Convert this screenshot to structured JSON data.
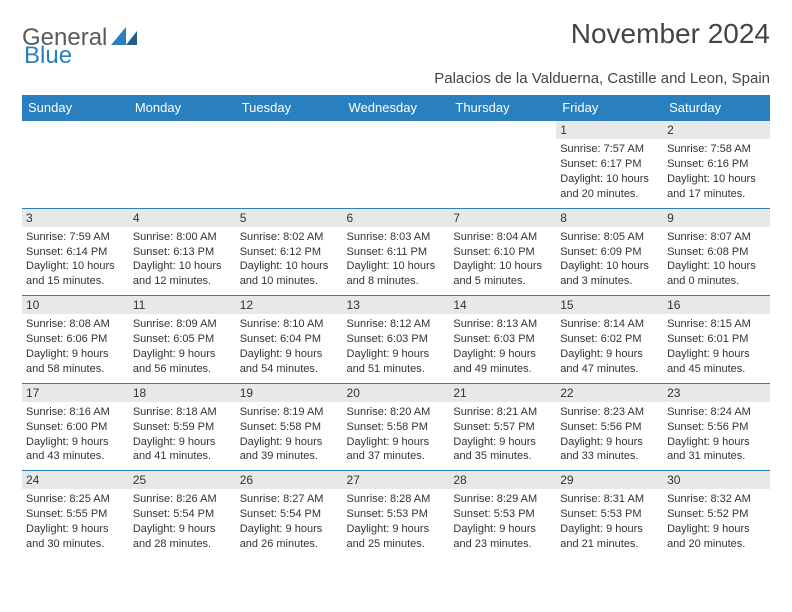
{
  "logo": {
    "part1": "General",
    "part2": "Blue"
  },
  "title": "November 2024",
  "location": "Palacios de la Valduerna, Castille and Leon, Spain",
  "colors": {
    "header_bg": "#2a7fbf",
    "header_text": "#ffffff",
    "daynum_bg": "#e8e8e8",
    "border": "#2a7fbf",
    "text": "#333333",
    "logo_gray": "#5a5a5a",
    "logo_blue": "#2a7fbf"
  },
  "weekdays": [
    "Sunday",
    "Monday",
    "Tuesday",
    "Wednesday",
    "Thursday",
    "Friday",
    "Saturday"
  ],
  "weeks": [
    [
      {
        "day": "",
        "sunrise": "",
        "sunset": "",
        "daylight": ""
      },
      {
        "day": "",
        "sunrise": "",
        "sunset": "",
        "daylight": ""
      },
      {
        "day": "",
        "sunrise": "",
        "sunset": "",
        "daylight": ""
      },
      {
        "day": "",
        "sunrise": "",
        "sunset": "",
        "daylight": ""
      },
      {
        "day": "",
        "sunrise": "",
        "sunset": "",
        "daylight": ""
      },
      {
        "day": "1",
        "sunrise": "Sunrise: 7:57 AM",
        "sunset": "Sunset: 6:17 PM",
        "daylight": "Daylight: 10 hours and 20 minutes."
      },
      {
        "day": "2",
        "sunrise": "Sunrise: 7:58 AM",
        "sunset": "Sunset: 6:16 PM",
        "daylight": "Daylight: 10 hours and 17 minutes."
      }
    ],
    [
      {
        "day": "3",
        "sunrise": "Sunrise: 7:59 AM",
        "sunset": "Sunset: 6:14 PM",
        "daylight": "Daylight: 10 hours and 15 minutes."
      },
      {
        "day": "4",
        "sunrise": "Sunrise: 8:00 AM",
        "sunset": "Sunset: 6:13 PM",
        "daylight": "Daylight: 10 hours and 12 minutes."
      },
      {
        "day": "5",
        "sunrise": "Sunrise: 8:02 AM",
        "sunset": "Sunset: 6:12 PM",
        "daylight": "Daylight: 10 hours and 10 minutes."
      },
      {
        "day": "6",
        "sunrise": "Sunrise: 8:03 AM",
        "sunset": "Sunset: 6:11 PM",
        "daylight": "Daylight: 10 hours and 8 minutes."
      },
      {
        "day": "7",
        "sunrise": "Sunrise: 8:04 AM",
        "sunset": "Sunset: 6:10 PM",
        "daylight": "Daylight: 10 hours and 5 minutes."
      },
      {
        "day": "8",
        "sunrise": "Sunrise: 8:05 AM",
        "sunset": "Sunset: 6:09 PM",
        "daylight": "Daylight: 10 hours and 3 minutes."
      },
      {
        "day": "9",
        "sunrise": "Sunrise: 8:07 AM",
        "sunset": "Sunset: 6:08 PM",
        "daylight": "Daylight: 10 hours and 0 minutes."
      }
    ],
    [
      {
        "day": "10",
        "sunrise": "Sunrise: 8:08 AM",
        "sunset": "Sunset: 6:06 PM",
        "daylight": "Daylight: 9 hours and 58 minutes."
      },
      {
        "day": "11",
        "sunrise": "Sunrise: 8:09 AM",
        "sunset": "Sunset: 6:05 PM",
        "daylight": "Daylight: 9 hours and 56 minutes."
      },
      {
        "day": "12",
        "sunrise": "Sunrise: 8:10 AM",
        "sunset": "Sunset: 6:04 PM",
        "daylight": "Daylight: 9 hours and 54 minutes."
      },
      {
        "day": "13",
        "sunrise": "Sunrise: 8:12 AM",
        "sunset": "Sunset: 6:03 PM",
        "daylight": "Daylight: 9 hours and 51 minutes."
      },
      {
        "day": "14",
        "sunrise": "Sunrise: 8:13 AM",
        "sunset": "Sunset: 6:03 PM",
        "daylight": "Daylight: 9 hours and 49 minutes."
      },
      {
        "day": "15",
        "sunrise": "Sunrise: 8:14 AM",
        "sunset": "Sunset: 6:02 PM",
        "daylight": "Daylight: 9 hours and 47 minutes."
      },
      {
        "day": "16",
        "sunrise": "Sunrise: 8:15 AM",
        "sunset": "Sunset: 6:01 PM",
        "daylight": "Daylight: 9 hours and 45 minutes."
      }
    ],
    [
      {
        "day": "17",
        "sunrise": "Sunrise: 8:16 AM",
        "sunset": "Sunset: 6:00 PM",
        "daylight": "Daylight: 9 hours and 43 minutes."
      },
      {
        "day": "18",
        "sunrise": "Sunrise: 8:18 AM",
        "sunset": "Sunset: 5:59 PM",
        "daylight": "Daylight: 9 hours and 41 minutes."
      },
      {
        "day": "19",
        "sunrise": "Sunrise: 8:19 AM",
        "sunset": "Sunset: 5:58 PM",
        "daylight": "Daylight: 9 hours and 39 minutes."
      },
      {
        "day": "20",
        "sunrise": "Sunrise: 8:20 AM",
        "sunset": "Sunset: 5:58 PM",
        "daylight": "Daylight: 9 hours and 37 minutes."
      },
      {
        "day": "21",
        "sunrise": "Sunrise: 8:21 AM",
        "sunset": "Sunset: 5:57 PM",
        "daylight": "Daylight: 9 hours and 35 minutes."
      },
      {
        "day": "22",
        "sunrise": "Sunrise: 8:23 AM",
        "sunset": "Sunset: 5:56 PM",
        "daylight": "Daylight: 9 hours and 33 minutes."
      },
      {
        "day": "23",
        "sunrise": "Sunrise: 8:24 AM",
        "sunset": "Sunset: 5:56 PM",
        "daylight": "Daylight: 9 hours and 31 minutes."
      }
    ],
    [
      {
        "day": "24",
        "sunrise": "Sunrise: 8:25 AM",
        "sunset": "Sunset: 5:55 PM",
        "daylight": "Daylight: 9 hours and 30 minutes."
      },
      {
        "day": "25",
        "sunrise": "Sunrise: 8:26 AM",
        "sunset": "Sunset: 5:54 PM",
        "daylight": "Daylight: 9 hours and 28 minutes."
      },
      {
        "day": "26",
        "sunrise": "Sunrise: 8:27 AM",
        "sunset": "Sunset: 5:54 PM",
        "daylight": "Daylight: 9 hours and 26 minutes."
      },
      {
        "day": "27",
        "sunrise": "Sunrise: 8:28 AM",
        "sunset": "Sunset: 5:53 PM",
        "daylight": "Daylight: 9 hours and 25 minutes."
      },
      {
        "day": "28",
        "sunrise": "Sunrise: 8:29 AM",
        "sunset": "Sunset: 5:53 PM",
        "daylight": "Daylight: 9 hours and 23 minutes."
      },
      {
        "day": "29",
        "sunrise": "Sunrise: 8:31 AM",
        "sunset": "Sunset: 5:53 PM",
        "daylight": "Daylight: 9 hours and 21 minutes."
      },
      {
        "day": "30",
        "sunrise": "Sunrise: 8:32 AM",
        "sunset": "Sunset: 5:52 PM",
        "daylight": "Daylight: 9 hours and 20 minutes."
      }
    ]
  ]
}
